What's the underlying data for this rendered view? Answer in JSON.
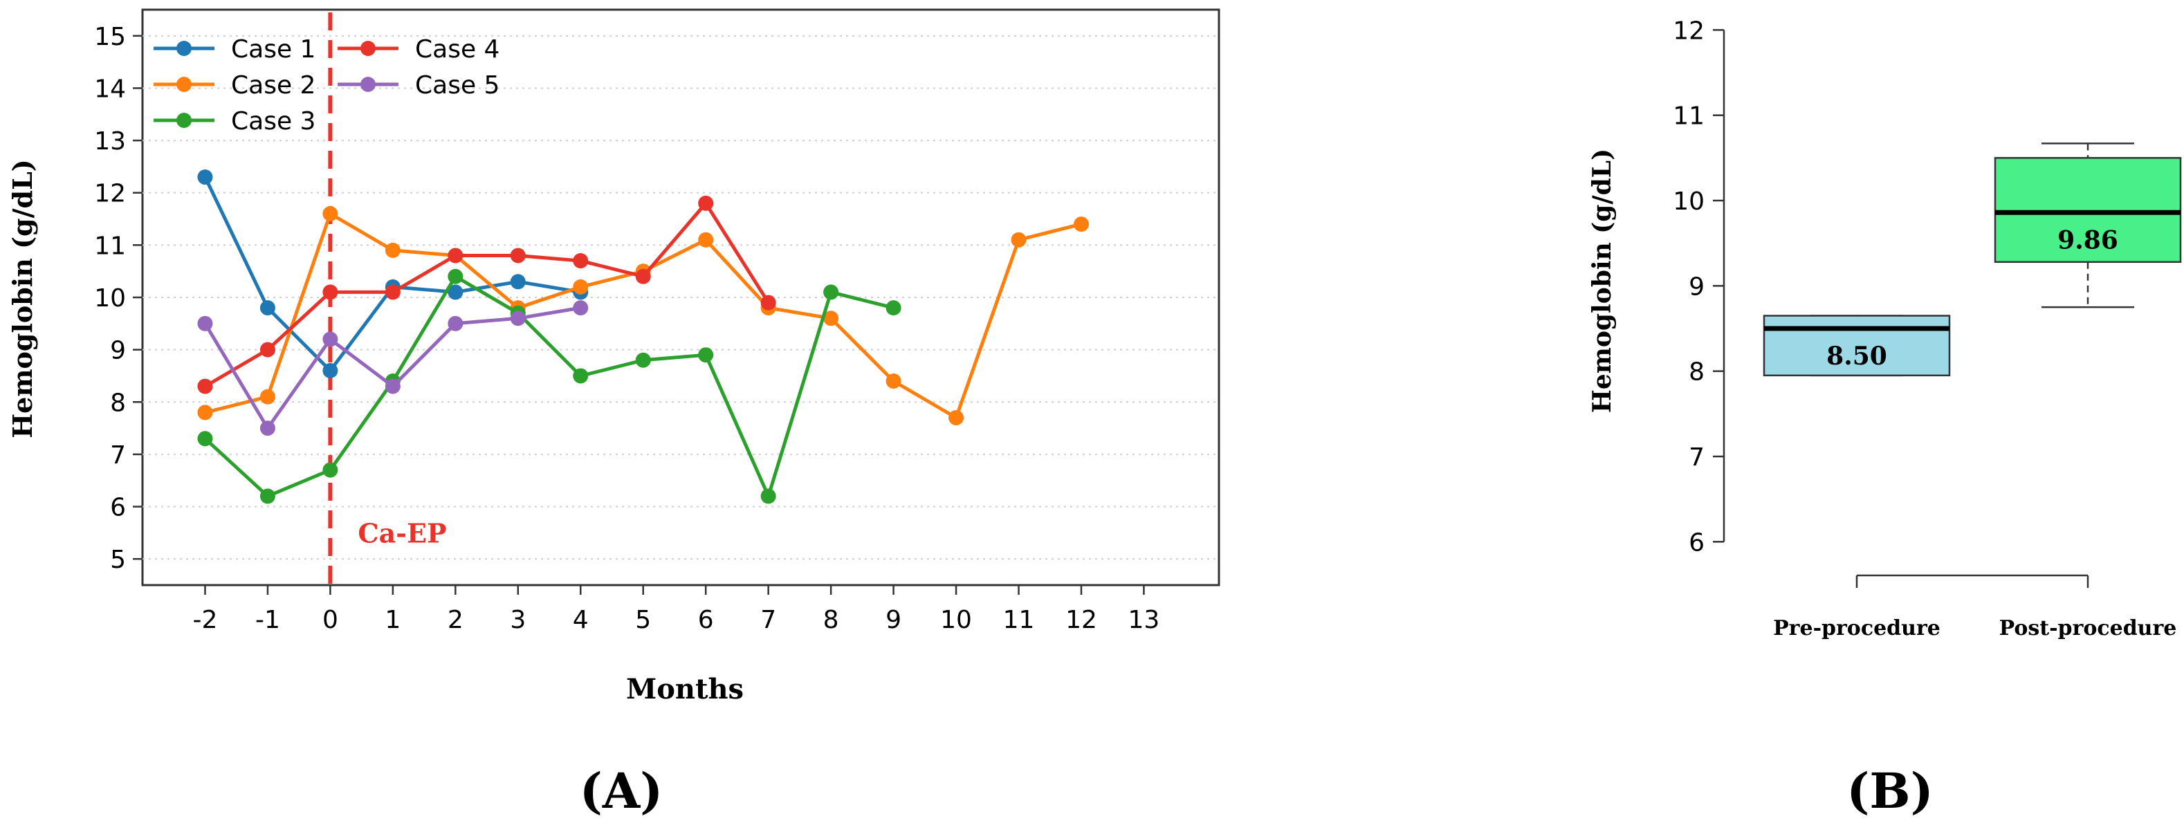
{
  "chart_data": [
    {
      "panel_label": "(A)",
      "type": "line",
      "xlabel": "Months",
      "ylabel": "Hemoglobin (g/dL)",
      "xlim": [
        -3,
        14.2
      ],
      "ylim": [
        4.5,
        15.5
      ],
      "xticks": [
        -2,
        -1,
        0,
        1,
        2,
        3,
        4,
        5,
        6,
        7,
        8,
        9,
        10,
        11,
        12,
        13
      ],
      "yticks": [
        5,
        6,
        7,
        8,
        9,
        10,
        11,
        12,
        13,
        14,
        15
      ],
      "grid": "horizontal dotted",
      "legend_position": "top-left",
      "vline": {
        "x": 0,
        "label": "Ca-EP",
        "color": "#e8332a"
      },
      "series": [
        {
          "name": "Case 1",
          "color": "#1f77b4",
          "points": [
            [
              -2,
              12.3
            ],
            [
              -1,
              9.8
            ],
            [
              0,
              8.6
            ],
            [
              1,
              10.2
            ],
            [
              2,
              10.1
            ],
            [
              3,
              10.3
            ],
            [
              4,
              10.1
            ]
          ]
        },
        {
          "name": "Case 2",
          "color": "#ff7f0e",
          "points": [
            [
              -2,
              7.8
            ],
            [
              -1,
              8.1
            ],
            [
              0,
              11.6
            ],
            [
              1,
              10.9
            ],
            [
              2,
              10.8
            ],
            [
              3,
              9.8
            ],
            [
              4,
              10.2
            ],
            [
              5,
              10.5
            ],
            [
              6,
              11.1
            ],
            [
              7,
              9.8
            ],
            [
              8,
              9.6
            ],
            [
              9,
              8.4
            ],
            [
              10,
              7.7
            ],
            [
              11,
              11.1
            ],
            [
              12,
              11.4
            ]
          ]
        },
        {
          "name": "Case 3",
          "color": "#2ca02c",
          "points": [
            [
              -2,
              7.3
            ],
            [
              -1,
              6.2
            ],
            [
              0,
              6.7
            ],
            [
              1,
              8.4
            ],
            [
              2,
              10.4
            ],
            [
              3,
              9.7
            ],
            [
              4,
              8.5
            ],
            [
              5,
              8.8
            ],
            [
              6,
              8.9
            ],
            [
              7,
              6.2
            ],
            [
              8,
              10.1
            ],
            [
              9,
              9.8
            ]
          ]
        },
        {
          "name": "Case 4",
          "color": "#e8332a",
          "points": [
            [
              -2,
              8.3
            ],
            [
              -1,
              9.0
            ],
            [
              0,
              10.1
            ],
            [
              1,
              10.1
            ],
            [
              2,
              10.8
            ],
            [
              3,
              10.8
            ],
            [
              4,
              10.7
            ],
            [
              5,
              10.4
            ],
            [
              6,
              11.8
            ],
            [
              7,
              9.9
            ]
          ]
        },
        {
          "name": "Case 5",
          "color": "#9467bd",
          "points": [
            [
              -2,
              9.5
            ],
            [
              -1,
              7.5
            ],
            [
              0,
              9.2
            ],
            [
              1,
              8.3
            ],
            [
              2,
              9.5
            ],
            [
              3,
              9.6
            ],
            [
              4,
              9.8
            ]
          ]
        }
      ]
    },
    {
      "panel_label": "(B)",
      "type": "box",
      "ylabel": "Hemoglobin (g/dL)",
      "ylim": [
        5.8,
        12.1
      ],
      "yticks": [
        6,
        7,
        8,
        9,
        10,
        11,
        12
      ],
      "categories": [
        "Pre-procedure",
        "Post-procedure"
      ],
      "boxes": [
        {
          "category": "Pre-procedure",
          "color": "#9cd8e6",
          "min": 7.95,
          "q1": 7.95,
          "median": 8.5,
          "q3": 8.65,
          "max": 8.65,
          "median_label": "8.50"
        },
        {
          "category": "Post-procedure",
          "color": "#49ef88",
          "min": 8.75,
          "q1": 9.28,
          "median": 9.86,
          "q3": 10.5,
          "max": 10.67,
          "median_label": "9.86"
        }
      ]
    }
  ]
}
